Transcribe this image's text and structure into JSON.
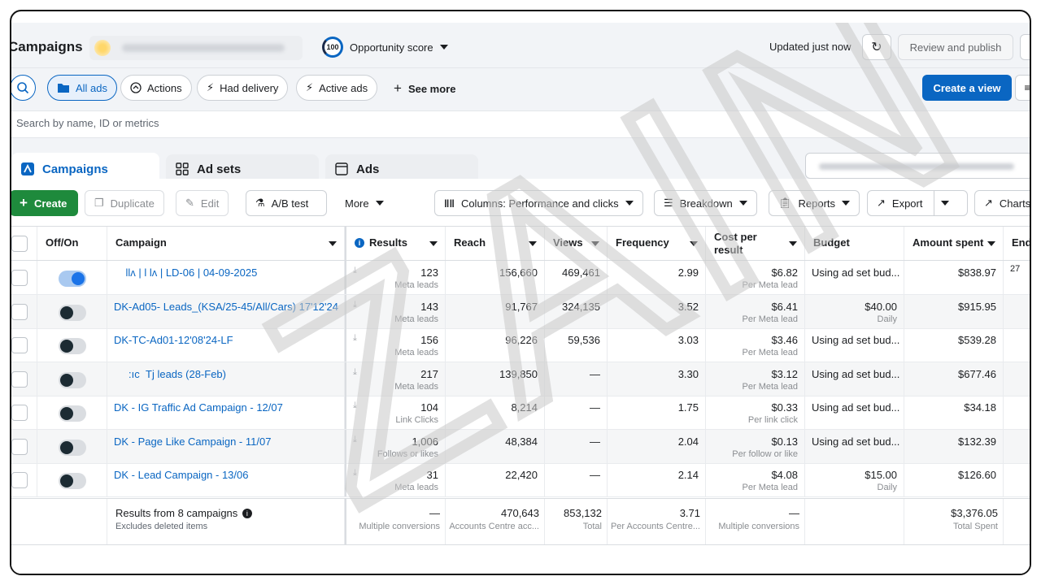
{
  "header": {
    "title": "Campaigns",
    "score_value": "100",
    "score_label": "Opportunity score",
    "updated": "Updated just now",
    "review_publish": "Review and publish"
  },
  "filters": {
    "all_ads": "All ads",
    "actions": "Actions",
    "had_delivery": "Had delivery",
    "active_ads": "Active ads",
    "see_more": "See more",
    "create_view": "Create a view"
  },
  "search": {
    "placeholder": "Search by name, ID or metrics"
  },
  "tabs": [
    {
      "label": "Campaigns"
    },
    {
      "label": "Ad sets"
    },
    {
      "label": "Ads"
    }
  ],
  "toolbar": {
    "create": "Create",
    "duplicate": "Duplicate",
    "edit": "Edit",
    "ab_test": "A/B test",
    "more": "More",
    "columns": "Columns: Performance and clicks",
    "breakdown": "Breakdown",
    "reports": "Reports",
    "export": "Export",
    "charts": "Charts"
  },
  "columns": {
    "offon": "Off/On",
    "campaign": "Campaign",
    "results": "Results",
    "reach": "Reach",
    "views": "Views",
    "frequency": "Frequency",
    "cpr_line1": "Cost per",
    "cpr_line2": "result",
    "budget": "Budget",
    "amount_spent": "Amount spent",
    "ends": "End"
  },
  "rows": [
    {
      "on": true,
      "name": "    llʌ | l lʌ | LD-06 | 04-09-2025",
      "results": "123",
      "results_sub": "Meta leads",
      "reach": "156,660",
      "views": "469,461",
      "frequency": "2.99",
      "cpr": "$6.82",
      "cpr_sub": "Per Meta lead",
      "budget": "Using ad set bud...",
      "budget_sub": "",
      "amount": "$838.97",
      "ends": "27"
    },
    {
      "on": false,
      "name": "DK-Ad05- Leads_(KSA/25-45/All/Cars) 17'12'24",
      "results": "143",
      "results_sub": "Meta leads",
      "reach": "91,767",
      "views": "324,135",
      "frequency": "3.52",
      "cpr": "$6.41",
      "cpr_sub": "Per Meta lead",
      "budget": "$40.00",
      "budget_sub": "Daily",
      "amount": "$915.95",
      "ends": ""
    },
    {
      "on": false,
      "name": "DK-TC-Ad01-12'08'24-LF",
      "results": "156",
      "results_sub": "Meta leads",
      "reach": "96,226",
      "views": "59,536",
      "frequency": "3.03",
      "cpr": "$3.46",
      "cpr_sub": "Per Meta lead",
      "budget": "Using ad set bud...",
      "budget_sub": "",
      "amount": "$539.28",
      "ends": ""
    },
    {
      "on": false,
      "name": "     :ıc  Tj leads (28-Feb)",
      "results": "217",
      "results_sub": "Meta leads",
      "reach": "139,850",
      "views": "—",
      "frequency": "3.30",
      "cpr": "$3.12",
      "cpr_sub": "Per Meta lead",
      "budget": "Using ad set bud...",
      "budget_sub": "",
      "amount": "$677.46",
      "ends": ""
    },
    {
      "on": false,
      "name": "DK - IG Traffic Ad Campaign - 12/07",
      "results": "104",
      "results_sub": "Link Clicks",
      "reach": "8,214",
      "views": "—",
      "frequency": "1.75",
      "cpr": "$0.33",
      "cpr_sub": "Per link click",
      "budget": "Using ad set bud...",
      "budget_sub": "",
      "amount": "$34.18",
      "ends": ""
    },
    {
      "on": false,
      "name": "DK - Page Like Campaign - 11/07",
      "results": "1,006",
      "results_sub": "Follows or likes",
      "reach": "48,384",
      "views": "—",
      "frequency": "2.04",
      "cpr": "$0.13",
      "cpr_sub": "Per follow or like",
      "budget": "Using ad set bud...",
      "budget_sub": "",
      "amount": "$132.39",
      "ends": ""
    },
    {
      "on": false,
      "name": "DK - Lead Campaign - 13/06",
      "results": "31",
      "results_sub": "Meta leads",
      "reach": "22,420",
      "views": "—",
      "frequency": "2.14",
      "cpr": "$4.08",
      "cpr_sub": "Per Meta lead",
      "budget": "$15.00",
      "budget_sub": "Daily",
      "amount": "$126.60",
      "ends": ""
    }
  ],
  "summary": {
    "label": "Results from 8 campaigns",
    "sub": "Excludes deleted items",
    "results": "—",
    "results_sub": "Multiple conversions",
    "reach": "470,643",
    "reach_sub": "Accounts Centre acc...",
    "views": "853,132",
    "views_sub": "Total",
    "frequency": "3.71",
    "frequency_sub": "Per Accounts Centre...",
    "cpr": "—",
    "cpr_sub": "Multiple conversions",
    "amount": "$3,376.05",
    "amount_sub": "Total Spent"
  },
  "watermark": "ZAIN"
}
